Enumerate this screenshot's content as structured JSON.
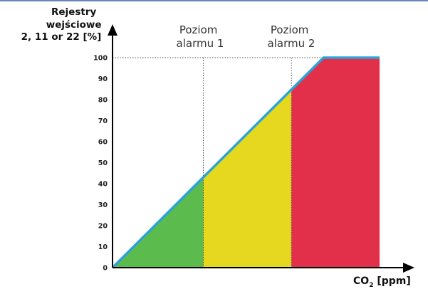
{
  "chart_data": {
    "type": "area",
    "ylabel_lines": [
      "Rejestry",
      "wejściowe",
      "2, 11 or 22 [%]"
    ],
    "xlabel": {
      "main": "CO",
      "sub": "2",
      "unit": " [ppm]"
    },
    "yticks": [
      "0",
      "10",
      "20",
      "30",
      "40",
      "50",
      "60",
      "70",
      "80",
      "90",
      "100"
    ],
    "ylim": [
      0,
      100
    ],
    "alarm_labels": [
      {
        "line1": "Poziom",
        "line2": "alarmu 1"
      },
      {
        "line1": "Poziom",
        "line2": "alarmu 2"
      }
    ],
    "line": {
      "x": [
        0,
        0.79,
        1.0
      ],
      "y": [
        0,
        100,
        100
      ],
      "color": "#2aa3d8"
    },
    "zones": [
      {
        "x0": 0,
        "x1": 0.34,
        "color": "#5bbb4c"
      },
      {
        "x0": 0.34,
        "x1": 0.67,
        "color": "#e6d81e"
      },
      {
        "x0": 0.67,
        "x1": 1.0,
        "color": "#e3304a"
      }
    ],
    "alarm_levels_x": [
      0.34,
      0.67
    ],
    "grid": false,
    "colors": {
      "axis": "#000000",
      "dotted": "#555555"
    }
  }
}
